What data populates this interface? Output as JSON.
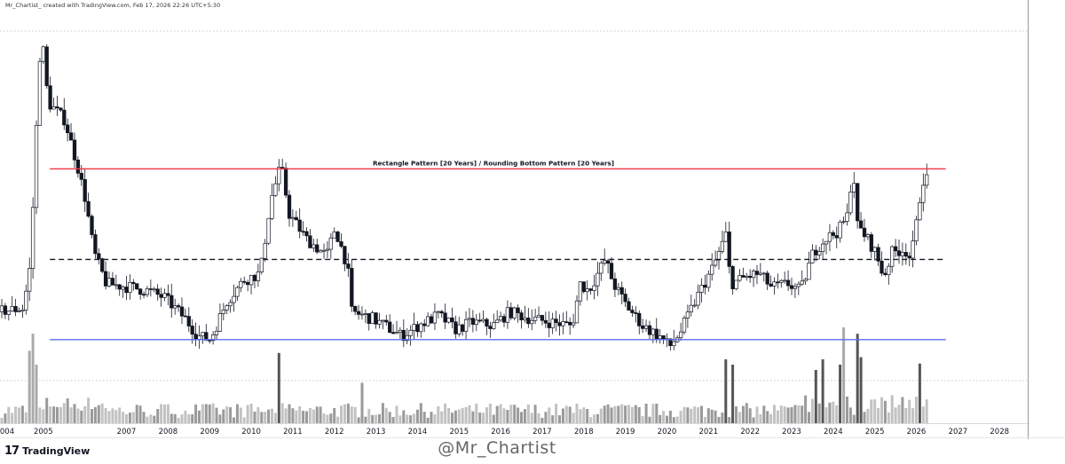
{
  "header": {
    "author_text": "Mr_Chartist_ created with TradingView.com, Feb 17, 2026 22:26 UTC+5:30"
  },
  "footer": {
    "logo_text": "TradingView",
    "logo_icon": "tradingview-logo-icon",
    "watermark": "@Mr_Chartist"
  },
  "chart_data": {
    "type": "candlestick",
    "interval": "monthly",
    "title": "",
    "xlabel": "",
    "ylabel": "",
    "price_axis_labels": "hidden",
    "x_axis": {
      "ticks": [
        "004",
        "2005",
        "2007",
        "2008",
        "2009",
        "2010",
        "2011",
        "2012",
        "2013",
        "2014",
        "2015",
        "2016",
        "2017",
        "2018",
        "2019",
        "2020",
        "2021",
        "2022",
        "2023",
        "2024",
        "2025",
        "2026",
        "2027",
        "2028"
      ],
      "range_years": [
        2004.0,
        2028.7
      ]
    },
    "y_axis": {
      "range_relative": [
        0.0,
        1.0
      ],
      "grid": false
    },
    "annotations": [
      {
        "type": "horizontal_line",
        "name": "resistance",
        "color": "#f23645",
        "style": "solid",
        "level_relative": 0.61,
        "start_year": 2005.2,
        "end_year": 2026.75
      },
      {
        "type": "horizontal_line",
        "name": "mid",
        "color": "#131722",
        "style": "dashed",
        "level_relative": 0.35,
        "start_year": 2005.2,
        "end_year": 2026.75
      },
      {
        "type": "horizontal_line",
        "name": "support",
        "color": "#5b6bf0",
        "style": "solid",
        "level_relative": 0.12,
        "start_year": 2005.2,
        "end_year": 2026.75
      },
      {
        "type": "label",
        "text": "Rectangle Pattern [20 Years] / Rounding Bottom Pattern [20 Years]",
        "level_relative": 0.61
      }
    ],
    "path_keypoints": [
      [
        2004.0,
        0.2
      ],
      [
        2004.6,
        0.21
      ],
      [
        2004.75,
        0.32
      ],
      [
        2004.87,
        0.58
      ],
      [
        2004.97,
        0.9
      ],
      [
        2005.05,
        0.99
      ],
      [
        2005.2,
        0.8
      ],
      [
        2005.6,
        0.75
      ],
      [
        2005.9,
        0.62
      ],
      [
        2006.1,
        0.52
      ],
      [
        2006.3,
        0.37
      ],
      [
        2006.6,
        0.28
      ],
      [
        2007.2,
        0.27
      ],
      [
        2007.6,
        0.26
      ],
      [
        2008.0,
        0.24
      ],
      [
        2008.5,
        0.18
      ],
      [
        2008.8,
        0.13
      ],
      [
        2009.1,
        0.12
      ],
      [
        2009.5,
        0.23
      ],
      [
        2009.9,
        0.29
      ],
      [
        2010.3,
        0.31
      ],
      [
        2010.55,
        0.52
      ],
      [
        2010.8,
        0.62
      ],
      [
        2011.0,
        0.48
      ],
      [
        2011.4,
        0.41
      ],
      [
        2011.9,
        0.36
      ],
      [
        2012.1,
        0.44
      ],
      [
        2012.4,
        0.33
      ],
      [
        2012.5,
        0.2
      ],
      [
        2013.0,
        0.18
      ],
      [
        2013.3,
        0.16
      ],
      [
        2013.7,
        0.13
      ],
      [
        2014.1,
        0.16
      ],
      [
        2014.6,
        0.19
      ],
      [
        2015.0,
        0.15
      ],
      [
        2015.4,
        0.17
      ],
      [
        2015.9,
        0.16
      ],
      [
        2016.3,
        0.2
      ],
      [
        2016.8,
        0.18
      ],
      [
        2017.3,
        0.17
      ],
      [
        2017.8,
        0.16
      ],
      [
        2018.0,
        0.28
      ],
      [
        2018.2,
        0.26
      ],
      [
        2018.6,
        0.35
      ],
      [
        2018.8,
        0.28
      ],
      [
        2019.1,
        0.22
      ],
      [
        2019.5,
        0.16
      ],
      [
        2019.9,
        0.13
      ],
      [
        2020.15,
        0.1
      ],
      [
        2020.4,
        0.14
      ],
      [
        2020.8,
        0.24
      ],
      [
        2021.2,
        0.33
      ],
      [
        2021.5,
        0.42
      ],
      [
        2021.62,
        0.28
      ],
      [
        2022.0,
        0.3
      ],
      [
        2022.3,
        0.31
      ],
      [
        2022.6,
        0.27
      ],
      [
        2023.0,
        0.28
      ],
      [
        2023.3,
        0.26
      ],
      [
        2023.6,
        0.37
      ],
      [
        2023.9,
        0.41
      ],
      [
        2024.2,
        0.43
      ],
      [
        2024.45,
        0.48
      ],
      [
        2024.55,
        0.64
      ],
      [
        2024.65,
        0.45
      ],
      [
        2024.9,
        0.41
      ],
      [
        2025.1,
        0.37
      ],
      [
        2025.3,
        0.3
      ],
      [
        2025.5,
        0.37
      ],
      [
        2025.8,
        0.38
      ],
      [
        2025.95,
        0.35
      ],
      [
        2026.15,
        0.5
      ],
      [
        2026.2,
        0.58
      ]
    ],
    "volume_spikes": [
      {
        "year": 2004.7,
        "relative": 0.68
      },
      {
        "year": 2004.78,
        "relative": 0.84
      },
      {
        "year": 2004.86,
        "relative": 0.55
      },
      {
        "year": 2010.65,
        "relative": 0.66
      },
      {
        "year": 2012.65,
        "relative": 0.38
      },
      {
        "year": 2021.45,
        "relative": 0.6
      },
      {
        "year": 2021.55,
        "relative": 0.55
      },
      {
        "year": 2023.55,
        "relative": 0.5
      },
      {
        "year": 2023.75,
        "relative": 0.6
      },
      {
        "year": 2024.15,
        "relative": 0.55
      },
      {
        "year": 2024.25,
        "relative": 0.9
      },
      {
        "year": 2024.55,
        "relative": 0.84
      },
      {
        "year": 2024.65,
        "relative": 0.62
      },
      {
        "year": 2026.12,
        "relative": 0.56
      }
    ]
  }
}
